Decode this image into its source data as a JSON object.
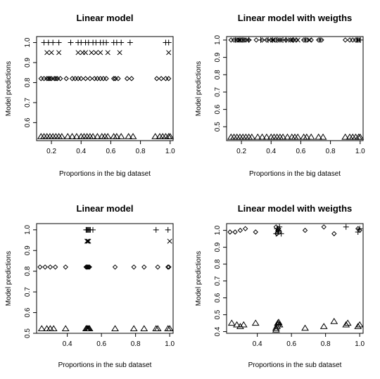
{
  "chart_data": [
    {
      "type": "scatter",
      "title": "Linear model",
      "xlabel": "Proportions in the big dataset",
      "ylabel": "Model predictions",
      "xlim": [
        0.1,
        1.02
      ],
      "ylim": [
        0.51,
        1.03
      ],
      "xticks": [
        0.2,
        0.4,
        0.6,
        0.8,
        1.0
      ],
      "xtick_labels": [
        "0.2",
        "0.4",
        "0.6",
        "0.8",
        "1.0"
      ],
      "yticks": [
        0.6,
        0.7,
        0.8,
        0.9,
        1.0
      ],
      "ytick_labels": [
        "0.6",
        "0.7",
        "0.8",
        "0.9",
        "1.0"
      ],
      "series": [
        {
          "marker": "plus",
          "y": 1.0,
          "x": [
            0.15,
            0.18,
            0.21,
            0.25,
            0.33,
            0.38,
            0.4,
            0.43,
            0.45,
            0.48,
            0.5,
            0.53,
            0.55,
            0.57,
            0.62,
            0.64,
            0.67,
            0.73,
            0.97,
            0.99
          ]
        },
        {
          "marker": "cross",
          "y": 0.95,
          "x": [
            0.17,
            0.2,
            0.25,
            0.38,
            0.41,
            0.43,
            0.47,
            0.5,
            0.53,
            0.58,
            0.66,
            0.99
          ]
        },
        {
          "marker": "diamond",
          "y": 0.82,
          "x": [
            0.13,
            0.15,
            0.17,
            0.18,
            0.19,
            0.2,
            0.22,
            0.23,
            0.24,
            0.26,
            0.3,
            0.34,
            0.36,
            0.38,
            0.4,
            0.43,
            0.46,
            0.49,
            0.51,
            0.53,
            0.55,
            0.57,
            0.62,
            0.63,
            0.65,
            0.71,
            0.74,
            0.91,
            0.94,
            0.97,
            0.99
          ]
        },
        {
          "marker": "triangle",
          "y": 0.53,
          "x": [
            0.13,
            0.15,
            0.17,
            0.19,
            0.21,
            0.23,
            0.25,
            0.27,
            0.31,
            0.34,
            0.37,
            0.4,
            0.42,
            0.44,
            0.46,
            0.48,
            0.51,
            0.54,
            0.56,
            0.58,
            0.62,
            0.64,
            0.67,
            0.72,
            0.75,
            0.9,
            0.93,
            0.95,
            0.97,
            0.99,
            1.0
          ]
        }
      ]
    },
    {
      "type": "scatter",
      "title": "Linear model with weigths",
      "xlabel": "Proportions in the big dataset",
      "ylabel": "Model predictions",
      "xlim": [
        0.1,
        1.02
      ],
      "ylim": [
        0.42,
        1.02
      ],
      "xticks": [
        0.2,
        0.4,
        0.6,
        0.8,
        1.0
      ],
      "xtick_labels": [
        "0.2",
        "0.4",
        "0.6",
        "0.8",
        "1.0"
      ],
      "yticks": [
        0.5,
        0.6,
        0.7,
        0.8,
        0.9,
        1.0
      ],
      "ytick_labels": [
        "0.5",
        "0.6",
        "0.7",
        "0.8",
        "0.9",
        "1.0"
      ],
      "series": [
        {
          "marker": "diamond",
          "y": 1.0,
          "x": [
            0.13,
            0.15,
            0.17,
            0.18,
            0.2,
            0.22,
            0.23,
            0.25,
            0.3,
            0.34,
            0.37,
            0.4,
            0.43,
            0.46,
            0.5,
            0.53,
            0.55,
            0.57,
            0.62,
            0.64,
            0.67,
            0.72,
            0.74,
            0.9,
            0.93,
            0.95,
            0.97,
            0.99
          ]
        },
        {
          "marker": "plus",
          "y": 1.0,
          "x": [
            0.16,
            0.19,
            0.21,
            0.25,
            0.33,
            0.38,
            0.41,
            0.44,
            0.48,
            0.5,
            0.55,
            0.63,
            0.73,
            0.98,
            1.0
          ]
        },
        {
          "marker": "cross",
          "y": 1.0,
          "x": [
            0.19,
            0.41,
            0.46,
            0.53,
            0.58,
            0.66,
            0.99
          ]
        },
        {
          "marker": "triangle",
          "y": 0.44,
          "x": [
            0.13,
            0.15,
            0.17,
            0.19,
            0.21,
            0.23,
            0.25,
            0.27,
            0.31,
            0.34,
            0.37,
            0.4,
            0.42,
            0.44,
            0.46,
            0.48,
            0.51,
            0.54,
            0.56,
            0.58,
            0.62,
            0.64,
            0.67,
            0.72,
            0.75,
            0.9,
            0.93,
            0.95,
            0.97,
            0.99,
            1.0
          ]
        }
      ]
    },
    {
      "type": "scatter",
      "title": "Linear model",
      "xlabel": "Proportions in the sub dataset",
      "ylabel": "Model predictions",
      "xlim": [
        0.22,
        1.02
      ],
      "ylim": [
        0.5,
        1.03
      ],
      "xticks": [
        0.4,
        0.6,
        0.8,
        1.0
      ],
      "xtick_labels": [
        "0.4",
        "0.6",
        "0.8",
        "1.0"
      ],
      "yticks": [
        0.5,
        0.6,
        0.7,
        0.8,
        0.9,
        1.0
      ],
      "ytick_labels": [
        "0.5",
        "0.6",
        "0.7",
        "0.8",
        "0.9",
        "1.0"
      ],
      "series": [
        {
          "marker": "plus",
          "y": 1.0,
          "x": [
            0.51,
            0.515,
            0.52,
            0.525,
            0.53,
            0.535,
            0.55,
            0.92,
            0.99
          ]
        },
        {
          "marker": "cross",
          "y": 0.945,
          "x": [
            0.515,
            0.52,
            0.525,
            1.0
          ]
        },
        {
          "marker": "diamond",
          "y": 0.82,
          "x": [
            0.24,
            0.27,
            0.3,
            0.33,
            0.39,
            0.51,
            0.515,
            0.52,
            0.525,
            0.53,
            0.68,
            0.79,
            0.85,
            0.93,
            0.99,
            0.995
          ]
        },
        {
          "marker": "triangle",
          "y": 0.522,
          "x": [
            0.25,
            0.28,
            0.3,
            0.32,
            0.39,
            0.51,
            0.515,
            0.52,
            0.525,
            0.53,
            0.68,
            0.79,
            0.85,
            0.92,
            0.93,
            0.99,
            1.0
          ]
        }
      ]
    },
    {
      "type": "scatter",
      "title": "Linear model with weigths",
      "xlabel": "Proportions in the sub dataset",
      "ylabel": "Model predictions",
      "xlim": [
        0.22,
        1.02
      ],
      "ylim": [
        0.39,
        1.04
      ],
      "xticks": [
        0.4,
        0.6,
        0.8,
        1.0
      ],
      "xtick_labels": [
        "0.4",
        "0.6",
        "0.8",
        "1.0"
      ],
      "yticks": [
        0.4,
        0.5,
        0.6,
        0.7,
        0.8,
        0.9,
        1.0
      ],
      "ytick_labels": [
        "0.4",
        "0.5",
        "0.6",
        "0.7",
        "0.8",
        "0.9",
        "1.0"
      ],
      "series": [
        {
          "marker": "diamond",
          "points": [
            [
              0.24,
              0.99
            ],
            [
              0.27,
              0.99
            ],
            [
              0.3,
              1.0
            ],
            [
              0.33,
              1.01
            ],
            [
              0.39,
              0.99
            ],
            [
              0.51,
              1.02
            ],
            [
              0.515,
              0.98
            ],
            [
              0.52,
              1.0
            ],
            [
              0.525,
              1.01
            ],
            [
              0.53,
              0.99
            ],
            [
              0.68,
              1.0
            ],
            [
              0.79,
              1.02
            ],
            [
              0.85,
              0.98
            ],
            [
              0.99,
              1.01
            ],
            [
              1.0,
              1.0
            ]
          ]
        },
        {
          "marker": "plus",
          "points": [
            [
              0.51,
              0.98
            ],
            [
              0.515,
              1.01
            ],
            [
              0.52,
              0.99
            ],
            [
              0.525,
              1.0
            ],
            [
              0.53,
              1.02
            ],
            [
              0.54,
              0.98
            ],
            [
              0.92,
              1.02
            ],
            [
              0.99,
              0.99
            ],
            [
              1.0,
              1.01
            ]
          ]
        },
        {
          "marker": "triangle",
          "points": [
            [
              0.25,
              0.45
            ],
            [
              0.28,
              0.44
            ],
            [
              0.3,
              0.43
            ],
            [
              0.32,
              0.44
            ],
            [
              0.39,
              0.45
            ],
            [
              0.51,
              0.41
            ],
            [
              0.51,
              0.42
            ],
            [
              0.515,
              0.43
            ],
            [
              0.52,
              0.44
            ],
            [
              0.52,
              0.45
            ],
            [
              0.525,
              0.455
            ],
            [
              0.53,
              0.44
            ],
            [
              0.68,
              0.42
            ],
            [
              0.79,
              0.43
            ],
            [
              0.85,
              0.46
            ],
            [
              0.92,
              0.44
            ],
            [
              0.93,
              0.45
            ],
            [
              0.99,
              0.43
            ],
            [
              1.0,
              0.44
            ]
          ]
        }
      ]
    }
  ]
}
